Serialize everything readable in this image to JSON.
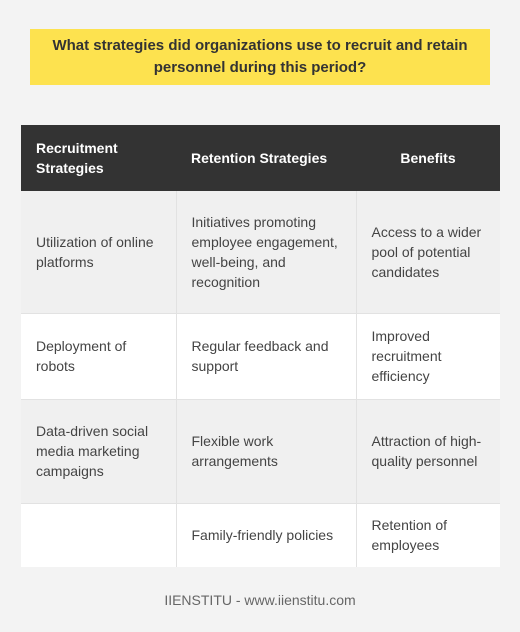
{
  "question": "What strategies did organizations use to recruit and retain personnel during this period?",
  "table": {
    "headers": [
      "Recruitment Strategies",
      "Retention Strategies",
      "Benefits"
    ],
    "rows": [
      [
        "Utilization of online platforms",
        "Initiatives promoting employee engagement, well-being, and recognition",
        "Access to a wider pool of potential candidates"
      ],
      [
        "Deployment of robots",
        "Regular feedback and support",
        "Improved recruitment efficiency"
      ],
      [
        "Data-driven social media marketing campaigns",
        "Flexible work arrangements",
        "Attraction of high-quality personnel"
      ],
      [
        "",
        "Family-friendly policies",
        "Retention of employees"
      ]
    ]
  },
  "footer": "IIENSTITU - www.iienstitu.com",
  "colors": {
    "question_bg": "#fde24f",
    "header_bg": "#333333",
    "page_bg": "#f3f3f3"
  }
}
